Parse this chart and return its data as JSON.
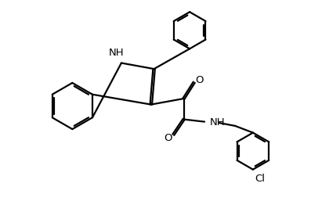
{
  "background_color": "#ffffff",
  "line_color": "#000000",
  "line_width": 1.6,
  "font_size": 9.5,
  "fig_width": 3.97,
  "fig_height": 2.71,
  "xlim": [
    0,
    10
  ],
  "ylim": [
    0,
    7
  ]
}
